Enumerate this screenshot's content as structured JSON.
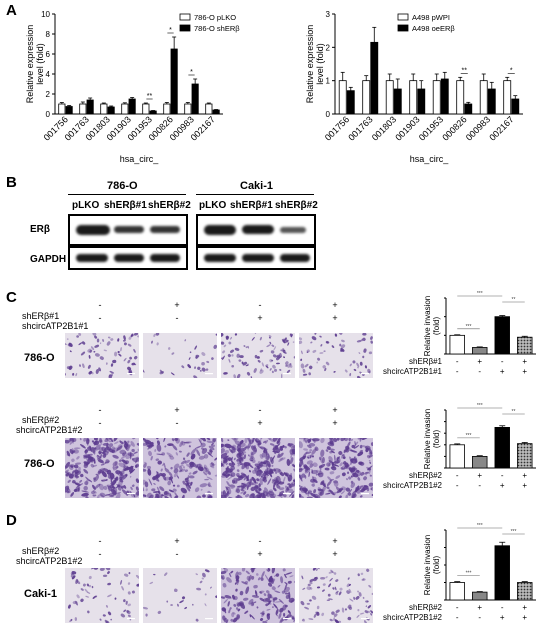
{
  "panels": {
    "A": "A",
    "B": "B",
    "C": "C",
    "D": "D"
  },
  "panelA_left": {
    "chart_data": {
      "type": "bar",
      "categories": [
        "001756",
        "001763",
        "001803",
        "001903",
        "001953",
        "000826",
        "000983",
        "002167"
      ],
      "series": [
        {
          "name": "786-O pLKO",
          "values": [
            1.0,
            1.0,
            1.0,
            1.0,
            1.0,
            1.0,
            1.0,
            1.0
          ],
          "errors": [
            0.15,
            0.2,
            0.1,
            0.12,
            0.1,
            0.15,
            0.15,
            0.1
          ]
        },
        {
          "name": "786-O shERβ",
          "values": [
            0.75,
            1.4,
            0.7,
            1.5,
            0.3,
            6.5,
            3.0,
            0.4
          ],
          "errors": [
            0.1,
            0.2,
            0.1,
            0.15,
            0.05,
            1.2,
            0.5,
            0.05
          ]
        }
      ],
      "significance": [
        "",
        "",
        "",
        "",
        "**",
        "*",
        "*",
        ""
      ],
      "ylabel": "Relative expression level (fold)",
      "xlabel": "hsa_circ_",
      "ylim": [
        0,
        10
      ],
      "yticks": [
        0,
        2,
        4,
        6,
        8,
        10
      ]
    }
  },
  "panelA_right": {
    "chart_data": {
      "type": "bar",
      "categories": [
        "001756",
        "001763",
        "001803",
        "001903",
        "001953",
        "000826",
        "000983",
        "002167"
      ],
      "series": [
        {
          "name": "A498 pWPI",
          "values": [
            1.0,
            1.0,
            1.0,
            1.0,
            1.0,
            1.0,
            1.0,
            1.0
          ],
          "errors": [
            0.25,
            0.15,
            0.2,
            0.2,
            0.2,
            0.1,
            0.2,
            0.1
          ]
        },
        {
          "name": "A498 oeERβ",
          "values": [
            0.7,
            2.15,
            0.75,
            0.75,
            1.05,
            0.3,
            0.75,
            0.45
          ],
          "errors": [
            0.1,
            0.45,
            0.3,
            0.25,
            0.2,
            0.05,
            0.2,
            0.1
          ]
        }
      ],
      "significance": [
        "",
        "",
        "",
        "",
        "",
        "**",
        "",
        "*"
      ],
      "ylabel": "Relative expression level (fold)",
      "xlabel": "hsa_circ_",
      "ylim": [
        0,
        3
      ],
      "yticks": [
        0,
        1,
        2,
        3
      ]
    }
  },
  "panelB": {
    "cell_lines": [
      "786-O",
      "Caki-1"
    ],
    "lanes": [
      "pLKO",
      "shERβ#1",
      "shERβ#2",
      "pLKO",
      "shERβ#1",
      "shERβ#2"
    ],
    "proteins": [
      "ERβ",
      "GAPDH"
    ]
  },
  "panelC1": {
    "row1_label": "shERβ#1",
    "row2_label": "shcircATP2B1#1",
    "row1_signs": [
      "-",
      "+",
      "-",
      "+"
    ],
    "row2_signs": [
      "-",
      "-",
      "+",
      "+"
    ],
    "cell_line": "786-O",
    "chart_data": {
      "type": "bar",
      "values": [
        1.0,
        0.35,
        2.0,
        0.9
      ],
      "errors": [
        0.03,
        0.03,
        0.06,
        0.05
      ],
      "ylabel": "Relative invasion (fold)",
      "ylim": [
        0,
        3
      ],
      "yticks": [
        0,
        1,
        2,
        3
      ],
      "row1_label": "shERβ#1",
      "row2_label": "shcircATP2B1#1",
      "row1_signs": [
        "-",
        "+",
        "-",
        "+"
      ],
      "row2_signs": [
        "-",
        "-",
        "+",
        "+"
      ],
      "significance": [
        "***",
        "***",
        "**"
      ]
    }
  },
  "panelC2": {
    "row1_label": "shERβ#2",
    "row2_label": "shcircATP2B1#2",
    "row1_signs": [
      "-",
      "+",
      "-",
      "+"
    ],
    "row2_signs": [
      "-",
      "-",
      "+",
      "+"
    ],
    "cell_line": "786-O",
    "chart_data": {
      "type": "bar",
      "values": [
        1.0,
        0.5,
        1.75,
        1.05
      ],
      "errors": [
        0.04,
        0.03,
        0.07,
        0.05
      ],
      "ylabel": "Relative invasion (fold)",
      "ylim": [
        0,
        2.5
      ],
      "yticks": [
        0.0,
        0.5,
        1.0,
        1.5,
        2.0,
        2.5
      ],
      "row1_label": "shERβ#2",
      "row2_label": "shcircATP2B1#2",
      "row1_signs": [
        "-",
        "+",
        "-",
        "+"
      ],
      "row2_signs": [
        "-",
        "-",
        "+",
        "+"
      ],
      "significance": [
        "***",
        "***",
        "**"
      ]
    }
  },
  "panelD": {
    "row1_label": "shERβ#2",
    "row2_label": "shcircATP2B1#2",
    "row1_signs": [
      "-",
      "+",
      "-",
      "+"
    ],
    "row2_signs": [
      "-",
      "-",
      "+",
      "+"
    ],
    "cell_line": "Caki-1",
    "chart_data": {
      "type": "bar",
      "values": [
        1.0,
        0.45,
        3.1,
        1.0
      ],
      "errors": [
        0.05,
        0.03,
        0.2,
        0.05
      ],
      "ylabel": "Relative invasion (fold)",
      "ylim": [
        0,
        4
      ],
      "yticks": [
        0,
        1,
        2,
        3,
        4
      ],
      "row1_label": "shERβ#2",
      "row2_label": "shcircATP2B1#2",
      "row1_signs": [
        "-",
        "+",
        "-",
        "+"
      ],
      "row2_signs": [
        "-",
        "-",
        "+",
        "+"
      ],
      "significance": [
        "***",
        "***",
        "***"
      ]
    }
  },
  "colors": {
    "bar_white": "#ffffff",
    "bar_black": "#000000",
    "bar_grey": "#888888",
    "hatch": "#555555",
    "stain": "#5b3a8e",
    "field": "#e6e1ea"
  }
}
